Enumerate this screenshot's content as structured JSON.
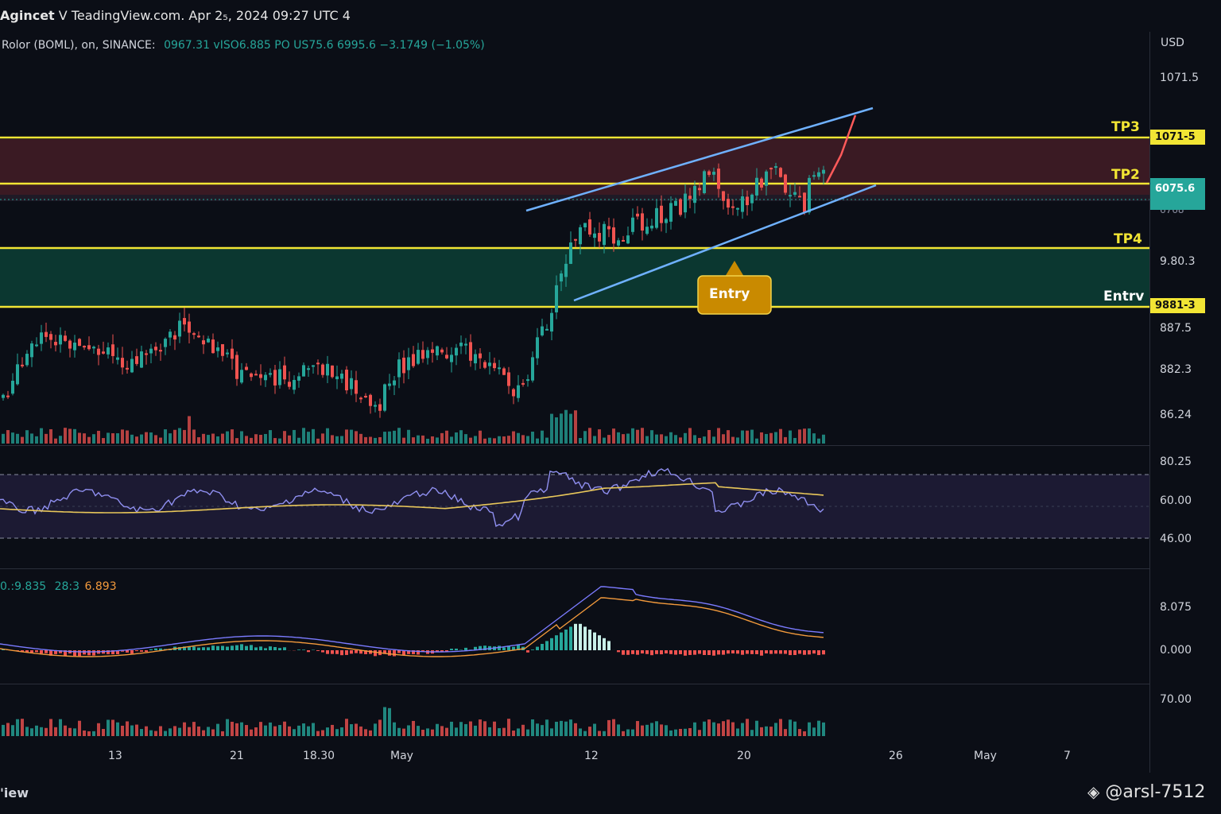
{
  "header": {
    "brand": "Agincet",
    "title_rest": "V TeadingView.com. Apr 2₅, 2024 09:27 UTC 4"
  },
  "legend": {
    "symbol": "Rolor (BOML), on, SINANCE:",
    "values": "0967.31  vISO6.885 PO  US75.6  6995.6  −3.1749 (−1.05%)"
  },
  "price_axis": {
    "currency": "USD",
    "ticks": [
      "1071.5",
      "6768",
      "9.80.3",
      "887.5",
      "882.3",
      "86.24"
    ],
    "tags": [
      {
        "text": "1071-5",
        "kind": "yellow"
      },
      {
        "text": "6075.6",
        "kind": "teal"
      },
      {
        "text": "9881-3",
        "kind": "yellow"
      }
    ]
  },
  "levels": {
    "tp3": "TP3",
    "tp2": "TP2",
    "tp4": "TP4",
    "entry": "Entrv"
  },
  "entry_callout": "Entry",
  "rsi": {
    "ticks": [
      "80.25",
      "60.00",
      "46.00"
    ]
  },
  "macd": {
    "legend_a": "0.:9.835",
    "legend_b": "28:3",
    "legend_c": "6.893",
    "ticks": [
      "8.075",
      "0.000"
    ]
  },
  "volume": {
    "ticks": [
      "70.00"
    ]
  },
  "time_axis": [
    "13",
    "21",
    "18.30",
    "May",
    "12",
    "20",
    "26",
    "May",
    "7"
  ],
  "footer": {
    "left": "'iew",
    "watermark": "@arsl-7512"
  },
  "colors": {
    "up": "#26a69a",
    "down": "#ef5350",
    "level": "#f2e534",
    "channel": "#6fb1ff",
    "forecast": "#ff5a5a",
    "rsi": "#8f8ff0",
    "rsi_ma": "#e8c75a",
    "macd": "#7b7bff",
    "signal": "#f39a3c",
    "entry_box": "#c98a00"
  },
  "chart_data": {
    "type": "candlestick",
    "price_range": [
      86.24,
      1071.5
    ],
    "levels": [
      {
        "name": "TP3",
        "price": "1071-5"
      },
      {
        "name": "TP2",
        "price": "6075.6"
      },
      {
        "name": "TP4",
        "price": "9.80.3"
      },
      {
        "name": "Entrv",
        "price": "9881-3"
      }
    ],
    "zones": [
      {
        "kind": "target",
        "color": "#4a1f26"
      },
      {
        "kind": "entry",
        "color": "#0d3b33"
      }
    ],
    "rsi_range": [
      46.0,
      80.25
    ],
    "macd_ticks": [
      0.0,
      8.075
    ]
  }
}
